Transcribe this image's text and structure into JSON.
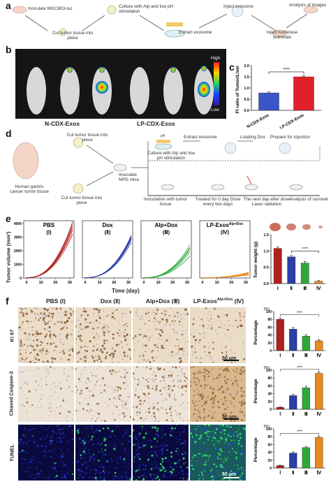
{
  "panel_letters": {
    "a": "a",
    "b": "b",
    "c": "c",
    "d": "d",
    "e": "e",
    "f": "f"
  },
  "panel_a": {
    "steps": [
      "Inoculate MGC803-luc",
      "Cut tumor tissue into piece",
      "Culture with Alp and low pH stimulation",
      "Extract exosome",
      "Inject exosome",
      "Inject luciferase substrate",
      "Analysis of images"
    ]
  },
  "panel_b": {
    "group_labels": [
      "N-CDX-Exos",
      "LP-CDX-Exos"
    ],
    "colorbar_high": "High",
    "colorbar_low": "Low"
  },
  "panel_c": {
    "chart_data": {
      "type": "bar",
      "categories": [
        "N-CDX-Exos",
        "LP-CDX-Exos"
      ],
      "values": [
        0.78,
        1.5
      ],
      "errors": [
        0.04,
        0.06
      ],
      "ylabel": "FI ratio of Tumor/Liver",
      "ylim": [
        0,
        2.0
      ],
      "yticks": [
        "0.0",
        "0.5",
        "1.0",
        "1.5",
        "2.0"
      ],
      "significance": "****",
      "colors": [
        "#3b55c8",
        "#e0202a"
      ]
    }
  },
  "panel_d": {
    "steps": [
      "Cut tumor tissue into piece",
      "Inoculate NPG mice",
      "Cut tumor tissue into piece",
      "Human gastric cancer tumor tissue",
      "Culture with Alp and low pH stimulation",
      "Extract exosome",
      "Loading Dox",
      "Prepare for injection",
      "Inoculation with tumor tissue",
      "Treated for 0 day Dose every two days",
      "The next day after dose Laser radiation",
      "Analysis of survival"
    ],
    "ph_label": "pH"
  },
  "panel_e": {
    "chart_data": [
      {
        "type": "line",
        "title": "PBS",
        "subtitle": "(Ⅰ)",
        "color": "#b0201c",
        "x": [
          0,
          10,
          20,
          30
        ],
        "series_end": [
          3.2,
          3.5,
          3.7,
          3.9,
          4.1
        ]
      },
      {
        "type": "line",
        "title": "Dox",
        "subtitle": "(Ⅱ)",
        "color": "#2c3fa8",
        "x": [
          0,
          10,
          20,
          30
        ],
        "series_end": [
          2.6,
          2.8,
          2.9,
          3.0,
          3.1
        ]
      },
      {
        "type": "line",
        "title": "Alp+Dox",
        "subtitle": "(Ⅲ)",
        "color": "#2ea83a",
        "x": [
          0,
          10,
          20,
          30
        ],
        "series_end": [
          1.6,
          1.9,
          2.1,
          2.2,
          2.4
        ]
      },
      {
        "type": "line",
        "title": "LP-Exos",
        "title_sup": "Alp+Dox",
        "subtitle": "(Ⅳ)",
        "color": "#e98a1e",
        "x": [
          0,
          10,
          20,
          30
        ],
        "series_end": [
          0.2,
          0.25,
          0.3,
          0.35,
          0.4
        ]
      }
    ],
    "ylabel": "Tumor volume (mm³)",
    "xlabel": "Time (day)",
    "yticks": [
      "0",
      "1000",
      "2000",
      "3000",
      "4000"
    ],
    "xticks": [
      "0",
      "10",
      "20",
      "30"
    ],
    "weight_chart": {
      "chart_data": {
        "type": "bar",
        "categories": [
          "Ⅰ",
          "Ⅱ",
          "Ⅲ",
          "Ⅳ"
        ],
        "values": [
          1.08,
          0.82,
          0.63,
          0.07
        ],
        "errors": [
          0.05,
          0.04,
          0.05,
          0.02
        ],
        "ylabel": "Tumor weight (g)",
        "ylim": [
          0,
          1.5
        ],
        "yticks": [
          "0.0",
          "0.5",
          "1.0",
          "1.5"
        ],
        "significance": "****",
        "colors": [
          "#b0201c",
          "#2c3fa8",
          "#2ea83a",
          "#e98a1e"
        ]
      }
    }
  },
  "panel_f": {
    "col_headers": [
      "PBS (Ⅰ)",
      "Dox (Ⅱ)",
      "Alp+Dox (Ⅲ)",
      "LP-Exos"
    ],
    "col_header_sup": "Alp+Dox",
    "col_header_suffix": " (Ⅳ)",
    "row_labels": [
      "Ki 67",
      "Cleaved Caspase-3",
      "TUNEL"
    ],
    "scale_bar": "50 μm",
    "charts": [
      {
        "type": "bar",
        "categories": [
          "Ⅰ",
          "Ⅱ",
          "Ⅲ",
          "Ⅳ"
        ],
        "values": [
          80,
          55,
          37,
          25
        ],
        "errors": [
          3,
          4,
          3,
          3
        ],
        "ylabel": "Percentage",
        "unit": "(%)",
        "ylim": [
          0,
          100
        ],
        "yticks": [
          "0",
          "20",
          "40",
          "60",
          "80",
          "100"
        ],
        "significance": "****"
      },
      {
        "type": "bar",
        "categories": [
          "Ⅰ",
          "Ⅱ",
          "Ⅲ",
          "Ⅳ"
        ],
        "values": [
          5,
          35,
          55,
          92
        ],
        "errors": [
          1,
          3,
          4,
          3
        ],
        "ylabel": "Percentage",
        "unit": "(%)",
        "ylim": [
          0,
          100
        ],
        "yticks": [
          "0",
          "20",
          "40",
          "60",
          "80",
          "100"
        ],
        "significance": "****"
      },
      {
        "type": "bar",
        "categories": [
          "Ⅰ",
          "Ⅱ",
          "Ⅲ",
          "Ⅳ"
        ],
        "values": [
          6,
          38,
          52,
          78
        ],
        "errors": [
          1,
          3,
          2,
          3
        ],
        "ylabel": "Percentage",
        "unit": "(%)",
        "ylim": [
          0,
          100
        ],
        "yticks": [
          "0",
          "20",
          "40",
          "60",
          "80",
          "100"
        ],
        "significance": "****"
      }
    ],
    "colors": [
      "#b0201c",
      "#2c3fa8",
      "#2ea83a",
      "#e98a1e"
    ]
  }
}
